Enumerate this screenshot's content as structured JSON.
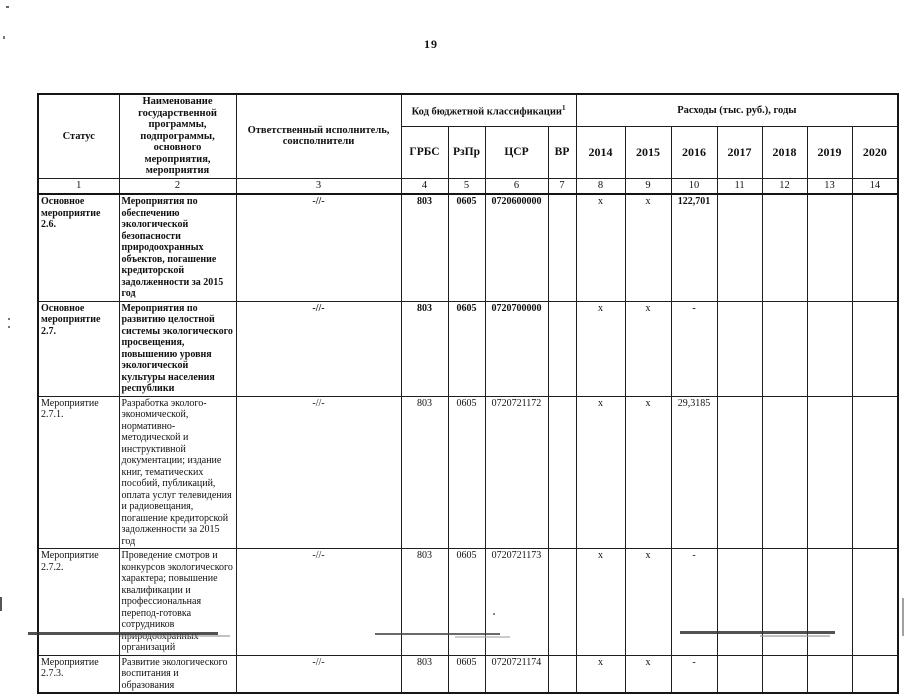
{
  "page": {
    "number": "19"
  },
  "table": {
    "header": {
      "status": "Статус",
      "name": "Наименование государственной программы, подпрограммы, основного мероприятия, мероприятия",
      "executor": "Ответственный исполнитель, соисполнители",
      "budget_code_group": "Код бюджетной классификации",
      "budget_code_footnote": "1",
      "expenses_group": "Расходы (тыс. руб.), годы",
      "code_columns": [
        "ГРБС",
        "РзПр",
        "ЦСР",
        "ВР"
      ],
      "year_columns": [
        "2014",
        "2015",
        "2016",
        "2017",
        "2018",
        "2019",
        "2020"
      ],
      "column_numbers": [
        "1",
        "2",
        "3",
        "4",
        "5",
        "6",
        "7",
        "8",
        "9",
        "10",
        "11",
        "12",
        "13",
        "14"
      ]
    },
    "rows": [
      {
        "status": "Основное мероприятие 2.6.",
        "name": "Мероприятия по обеспечению экологической безопасности природоохранных объектов,  погашение кредиторской задолженности за 2015 год",
        "executor": "-//-",
        "grbs": "803",
        "rzpr": "0605",
        "csr": "0720600000",
        "vr": "",
        "years": [
          "x",
          "x",
          "122,701",
          "",
          "",
          "",
          ""
        ]
      },
      {
        "status": "Основное мероприятие 2.7.",
        "name": "Мероприятия по развитию целостной системы экологического просвещения, повышению уровня экологической культуры населения республики",
        "executor": "-//-",
        "grbs": "803",
        "rzpr": "0605",
        "csr": "0720700000",
        "vr": "",
        "years": [
          "x",
          "x",
          "-",
          "",
          "",
          "",
          ""
        ]
      },
      {
        "status": "Мероприятие 2.7.1.",
        "name": "Разработка эколого-экономической, нормативно-методической и инструктивной документации; издание книг, тематических пособий, публикаций, оплата услуг телевидения и радиовещания, погашение кредиторской задолженности за 2015 год",
        "executor": "-//-",
        "grbs": "803",
        "rzpr": "0605",
        "csr": "0720721172",
        "vr": "",
        "years": [
          "x",
          "x",
          "29,3185",
          "",
          "",
          "",
          ""
        ]
      },
      {
        "status": "Мероприятие 2.7.2.",
        "name": "Проведение смотров и конкурсов экологического характера; повышение квалификации  и профессиональная перепод-готовка сотрудников природоохранных организаций",
        "executor": "-//-",
        "grbs": "803",
        "rzpr": "0605",
        "csr": "0720721173",
        "vr": "",
        "years": [
          "x",
          "x",
          "-",
          "",
          "",
          "",
          ""
        ]
      },
      {
        "status": "Мероприятие 2.7.3.",
        "name": "Развитие экологического воспитания и образования",
        "executor": "-//-",
        "grbs": "803",
        "rzpr": "0605",
        "csr": "0720721174",
        "vr": "",
        "years": [
          "x",
          "x",
          "-",
          "",
          "",
          "",
          ""
        ]
      }
    ]
  }
}
